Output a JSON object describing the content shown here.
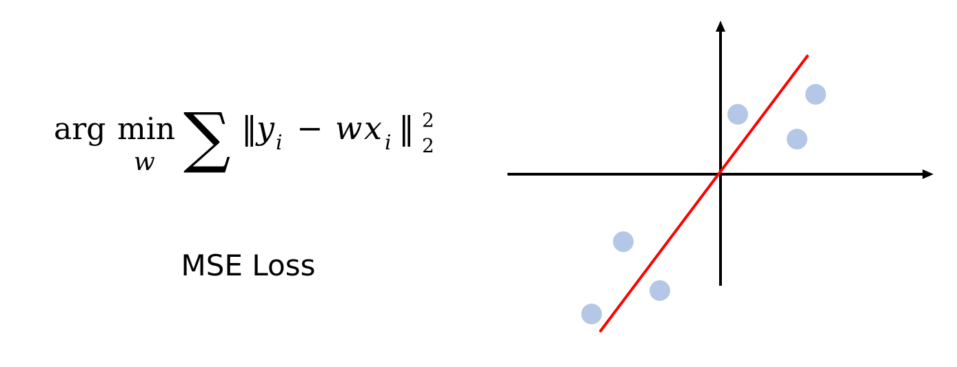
{
  "formula": {
    "arg": "arg",
    "min": "min",
    "min_sub": "w",
    "sum": "∑",
    "norm_open": "‖",
    "y": "y",
    "y_sub": "i",
    "minus": "−",
    "w": "w",
    "x": "x",
    "x_sub": "i",
    "norm_close": "‖",
    "power": "2",
    "norm_sub": "2"
  },
  "caption": "MSE Loss"
}
